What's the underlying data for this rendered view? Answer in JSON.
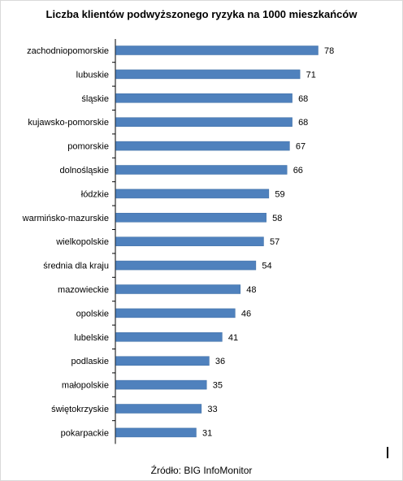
{
  "chart_data": {
    "type": "bar",
    "orientation": "horizontal",
    "title": "Liczba klientów podwyższonego ryzyka na 1000 mieszkańców",
    "categories": [
      "zachodniopomorskie",
      "lubuskie",
      "śląskie",
      "kujawsko-pomorskie",
      "pomorskie",
      "dolnośląskie",
      "łódzkie",
      "warmińsko-mazurskie",
      "wielkopolskie",
      "średnia dla kraju",
      "mazowieckie",
      "opolskie",
      "lubelskie",
      "podlaskie",
      "małopolskie",
      "świętokrzyskie",
      "pokarpackie"
    ],
    "values": [
      78,
      71,
      68,
      68,
      67,
      66,
      59,
      58,
      57,
      54,
      48,
      46,
      41,
      36,
      35,
      33,
      31
    ],
    "data_labels": [
      "78",
      "71",
      "68",
      "68",
      "67",
      "66",
      "59",
      "58",
      "57",
      "54",
      "48",
      "46",
      "41",
      "36",
      "35",
      "33",
      "31"
    ],
    "xlim": [
      0,
      78
    ],
    "bar_color": "#4f81bd",
    "grid": false,
    "legend": "none"
  },
  "footer": {
    "source": "Źródło: BIG InfoMonitor"
  }
}
